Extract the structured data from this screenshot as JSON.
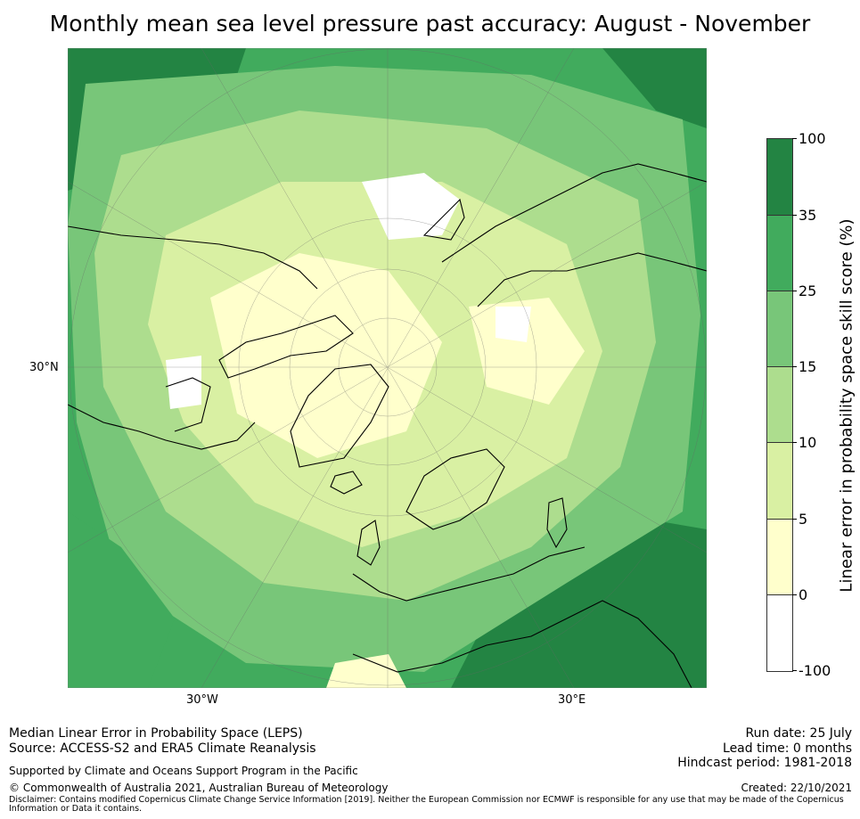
{
  "title": "Monthly mean sea level pressure past accuracy: August - November",
  "axes": {
    "lat_label": "30°N",
    "lon_west_label": "30°W",
    "lon_east_label": "30°E"
  },
  "colorbar": {
    "label": "Linear error in probability space skill score (%)",
    "ticks": [
      "100",
      "35",
      "25",
      "15",
      "10",
      "5",
      "0",
      "-100"
    ],
    "colors": [
      "#238443",
      "#41ab5d",
      "#78c679",
      "#addd8e",
      "#d9f0a3",
      "#ffffcc",
      "#ffffff"
    ]
  },
  "footer": {
    "line1": "Median Linear Error in Probability Space (LEPS)",
    "line2": "Source: ACCESS-S2 and ERA5 Climate Reanalysis",
    "support": "Supported by Climate and Oceans Support Program in the Pacific",
    "copyright": "© Commonwealth of Australia 2021, Australian Bureau of Meteorology",
    "disclaimer": "Disclaimer: Contains modified Copernicus Climate Change Service Information [2019]. Neither the European Commission nor ECMWF is responsible for any use that may be made of the Copernicus Information or Data it contains.",
    "run_date": "Run date: 25 July",
    "lead_time": "Lead time: 0 months",
    "hindcast": "Hindcast period: 1981-2018",
    "created": "Created: 22/10/2021"
  }
}
